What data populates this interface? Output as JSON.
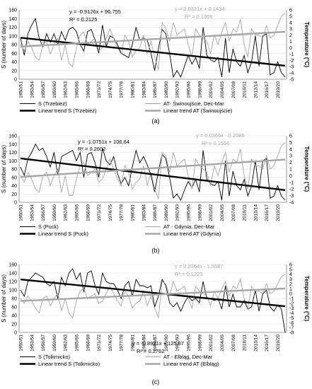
{
  "chart_data": [
    {
      "type": "line",
      "panel_label": "(a)",
      "ylabel_left": "S (number of days)",
      "ylabel_right": "Temperature (°C)",
      "ylim_left": [
        0,
        160
      ],
      "ylim_right": [
        -5,
        6
      ],
      "x_tick_labels": [
        "1950/51",
        "1953/54",
        "1956/57",
        "1959/60",
        "1962/63",
        "1965/66",
        "1968/69",
        "1971/72",
        "1974/75",
        "1977/78",
        "1980/81",
        "1983/84",
        "1986/87",
        "1989/90",
        "1992/93",
        "1995/96",
        "1998/99",
        "2001/02",
        "2004/05",
        "2007/08",
        "2010/11",
        "2013/14",
        "2016/17",
        "2019/20"
      ],
      "equation_s": "y = -0.9126x + 96.755",
      "r2_s": "R² = 0.2125",
      "equation_t": "y = 0.0331x + 0.1434",
      "r2_t": "R² = 0.1309",
      "legend": [
        "S (Trzebież)",
        "AT- Świnoujście, Dec-Mar",
        "Linear trend S (Trzebież)",
        "Linear trend AT (Świnoujście)"
      ],
      "series": [
        {
          "name": "S (Trzebież)",
          "axis": "left",
          "color": "#000000",
          "values": [
            95,
            55,
            105,
            125,
            140,
            95,
            75,
            105,
            85,
            105,
            80,
            110,
            90,
            115,
            120,
            110,
            80,
            65,
            110,
            115,
            90,
            60,
            125,
            75,
            100,
            95,
            80,
            60,
            55,
            50,
            80,
            120,
            90,
            95,
            90,
            60,
            20,
            70,
            115,
            105,
            60,
            5,
            20,
            5,
            30,
            55,
            35,
            50,
            25,
            120,
            55,
            45,
            40,
            50,
            5,
            95,
            15,
            70,
            40,
            30,
            55,
            15,
            40,
            100,
            30,
            100,
            105,
            10,
            15,
            40,
            15,
            5
          ]
        },
        {
          "name": "AT- Świnoujście, Dec-Mar",
          "axis": "right",
          "color": "#a6a6a6",
          "values": [
            0.5,
            -0.5,
            1,
            0,
            -1.5,
            -2,
            0.5,
            1,
            -1,
            0.5,
            1.5,
            -2,
            0.5,
            -2.5,
            -3,
            0,
            2,
            2.5,
            0.5,
            1,
            1.5,
            -0.5,
            0,
            1.5,
            3,
            1.5,
            0,
            -1,
            2,
            1,
            -1.5,
            -0.5,
            0,
            2,
            -1,
            1,
            -1.5,
            -3.5,
            4,
            3,
            1,
            4,
            2,
            2.5,
            3,
            0.5,
            -1.5,
            3,
            2,
            1.5,
            1,
            -1,
            2,
            0.5,
            2.5,
            4,
            1,
            3,
            2.5,
            4.5,
            0.5,
            -1.5,
            3,
            2,
            2,
            1.5,
            3.5,
            1.5,
            2,
            3.5,
            5,
            5.5
          ]
        },
        {
          "name": "Linear trend S (Trzebież)",
          "axis": "left",
          "color": "#000000",
          "trend": [
            96.755,
            -0.9126
          ]
        },
        {
          "name": "Linear trend AT (Świnoujście)",
          "axis": "right",
          "color": "#a6a6a6",
          "trend": [
            0.1434,
            0.0331
          ]
        }
      ]
    },
    {
      "type": "line",
      "panel_label": "(b)",
      "ylabel_left": "S (number of days)",
      "ylabel_right": "Temperature (°C)",
      "ylim_left": [
        0,
        160
      ],
      "ylim_right": [
        -4,
        6
      ],
      "x_tick_labels": [
        "1950/51",
        "1953/54",
        "1956/57",
        "1959/60",
        "1962/63",
        "1965/66",
        "1968/69",
        "1971/72",
        "1974/75",
        "1977/78",
        "1980/81",
        "1983/84",
        "1986/87",
        "1989/90",
        "1992/93",
        "1995/96",
        "1998/99",
        "2001/02",
        "2004/05",
        "2007/08",
        "2010/11",
        "2013/14",
        "2016/17",
        "2019/20"
      ],
      "equation_s": "y = -1.0751x + 106.64",
      "r2_s": "R² = 0.2602",
      "equation_t": "y = 0.0366x - 0.2086",
      "r2_t": "R² = 0.1556",
      "legend": [
        "S (Puck)",
        "AT - Gdynia, Dec-Mar",
        "Linear trend S (Puck)",
        "Linear trend AT (Gdynia)"
      ],
      "series": [
        {
          "name": "S (Puck)",
          "axis": "left",
          "color": "#000000",
          "values": [
            85,
            65,
            105,
            120,
            140,
            125,
            130,
            110,
            85,
            120,
            65,
            110,
            115,
            120,
            125,
            100,
            120,
            60,
            115,
            120,
            95,
            60,
            130,
            100,
            90,
            110,
            70,
            45,
            60,
            40,
            85,
            125,
            95,
            110,
            90,
            65,
            25,
            75,
            115,
            105,
            60,
            10,
            20,
            5,
            30,
            50,
            35,
            55,
            25,
            125,
            55,
            45,
            40,
            50,
            5,
            100,
            15,
            75,
            40,
            30,
            55,
            15,
            40,
            100,
            30,
            100,
            105,
            10,
            15,
            40,
            15,
            5
          ]
        },
        {
          "name": "AT - Gdynia, Dec-Mar",
          "axis": "right",
          "color": "#a6a6a6",
          "values": [
            0,
            -1,
            0.5,
            -0.5,
            -2,
            -2.5,
            0,
            0.5,
            -1.5,
            0,
            1,
            -2.5,
            0,
            -3,
            -3,
            -0.5,
            1.5,
            2,
            0,
            0.5,
            1,
            -1,
            -0.5,
            1,
            2.5,
            1,
            -0.5,
            -1.5,
            1.5,
            0.5,
            -2,
            -1,
            -0.5,
            1.5,
            -1.5,
            0.5,
            -2,
            -3.5,
            3.5,
            3,
            0.5,
            3.5,
            1.5,
            2,
            2.5,
            0,
            -2,
            2.5,
            1.5,
            1,
            0.5,
            -1.5,
            1.5,
            0,
            2,
            3.5,
            0.5,
            2.5,
            2,
            4,
            0,
            -2,
            2.5,
            1.5,
            1.5,
            1,
            3,
            1,
            1.5,
            3,
            4.5,
            5
          ]
        },
        {
          "name": "Linear trend S (Puck)",
          "axis": "left",
          "color": "#000000",
          "trend": [
            106.64,
            -1.0751
          ]
        },
        {
          "name": "Linear trend AT (Gdynia)",
          "axis": "right",
          "color": "#a6a6a6",
          "trend": [
            -0.2086,
            0.0366
          ]
        }
      ]
    },
    {
      "type": "line",
      "panel_label": "(c)",
      "ylabel_left": "S (number of days)",
      "ylabel_right": "Temperature (°C)",
      "ylim_left": [
        0,
        160
      ],
      "ylim_right": [
        -8,
        6
      ],
      "x_tick_labels": [
        "1950/51",
        "1953/54",
        "1956/57",
        "1959/60",
        "1962/63",
        "1965/66",
        "1968/69",
        "1971/72",
        "1974/75",
        "1977/78",
        "1980/81",
        "1983/84",
        "1986/87",
        "1989/90",
        "1992/93",
        "1995/96",
        "1998/99",
        "2001/02",
        "2004/05",
        "2007/08",
        "2010/11",
        "2013/14",
        "2016/17",
        "2019/20"
      ],
      "equation_s": "y = -0.8921x + 125.87",
      "r2_s": "R² = 0.2762",
      "equation_t": "y = 0.0364x - 1.5587",
      "r2_t": "R² = 0.1223",
      "legend": [
        "S (Tolkmicko)",
        "AT - Elbląg, Dec-Mar",
        "Linear trend S (Tolkmicko)",
        "Linear trend AT (Elbląg)"
      ],
      "series": [
        {
          "name": "S (Tolkmicko)",
          "axis": "left",
          "color": "#000000",
          "values": [
            100,
            85,
            120,
            130,
            140,
            135,
            130,
            115,
            110,
            120,
            80,
            130,
            110,
            140,
            150,
            125,
            140,
            95,
            140,
            145,
            110,
            90,
            140,
            120,
            115,
            115,
            100,
            80,
            110,
            120,
            85,
            125,
            110,
            110,
            105,
            110,
            60,
            85,
            125,
            110,
            70,
            60,
            70,
            50,
            70,
            85,
            75,
            80,
            70,
            120,
            80,
            80,
            75,
            80,
            55,
            110,
            60,
            90,
            60,
            60,
            75,
            55,
            60,
            100,
            50,
            90,
            100,
            60,
            50,
            65,
            55,
            0
          ]
        },
        {
          "name": "AT - Elbląg, Dec-Mar",
          "axis": "right",
          "color": "#a6a6a6",
          "values": [
            -1,
            -2,
            -0.5,
            -1.5,
            -3,
            -4,
            -1,
            -0.5,
            -2.5,
            -1,
            0,
            -3.5,
            -1,
            -4,
            -5,
            -1.5,
            0.5,
            1,
            -1,
            -0.5,
            0,
            -2,
            -1.5,
            0,
            1.5,
            0,
            -1.5,
            -2.5,
            0.5,
            -0.5,
            -3,
            -2,
            -1.5,
            0.5,
            -2.5,
            -0.5,
            -3,
            -5,
            2.5,
            2,
            -0.5,
            2.5,
            0.5,
            1,
            1.5,
            -1,
            -3,
            1.5,
            0.5,
            0,
            -0.5,
            -2.5,
            0.5,
            -1,
            1,
            2.5,
            -0.5,
            1.5,
            1,
            3,
            -1,
            -3,
            1.5,
            0.5,
            0.5,
            0,
            2,
            0,
            0.5,
            2,
            3.5,
            4
          ]
        },
        {
          "name": "Linear trend S (Tolkmicko)",
          "axis": "left",
          "color": "#000000",
          "trend": [
            125.87,
            -0.8921
          ]
        },
        {
          "name": "Linear trend AT (Elbląg)",
          "axis": "right",
          "color": "#a6a6a6",
          "trend": [
            -1.5587,
            0.0364
          ]
        }
      ]
    }
  ]
}
